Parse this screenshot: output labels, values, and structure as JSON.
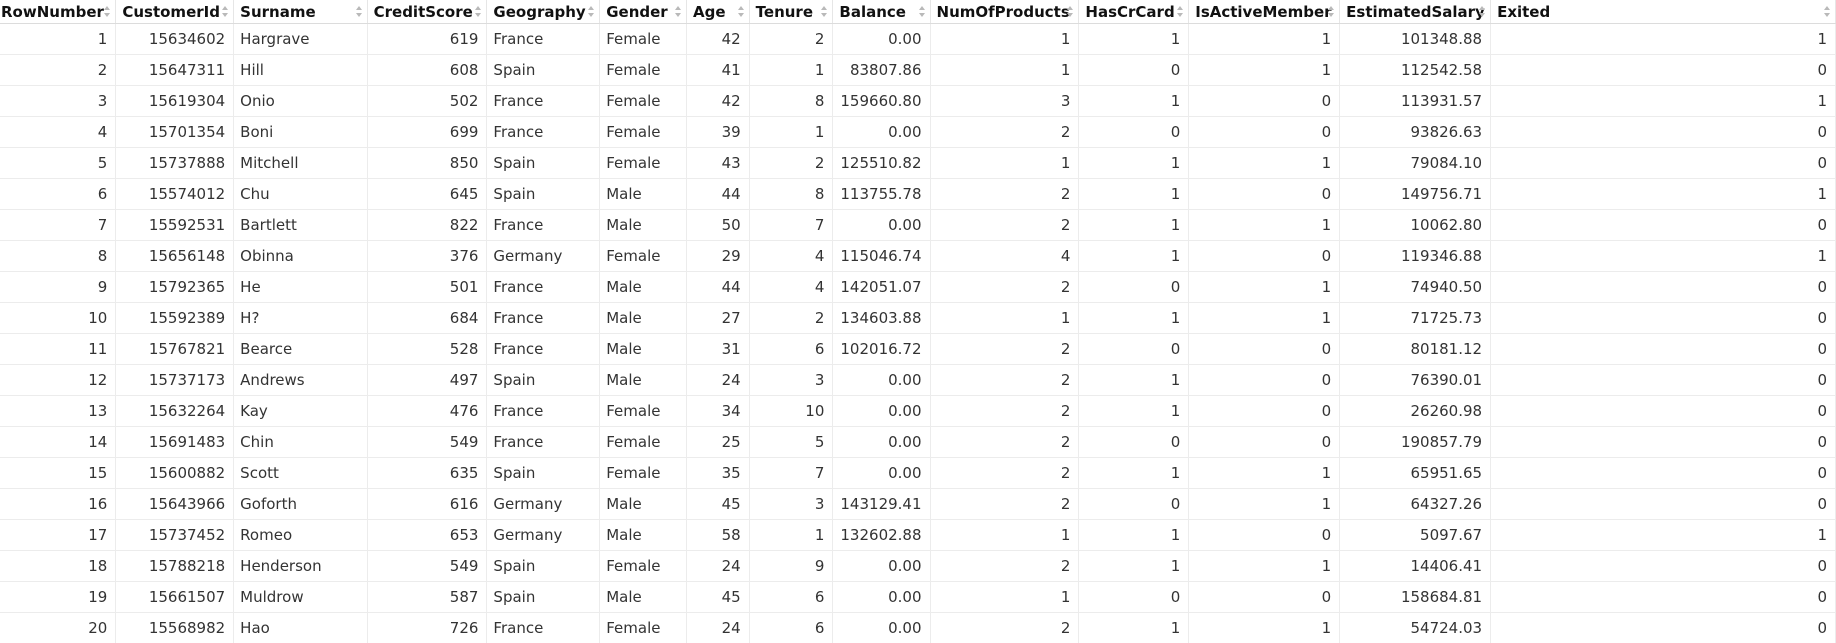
{
  "table": {
    "columns": [
      {
        "key": "RowNumber",
        "label": "RowNumber",
        "align": "num"
      },
      {
        "key": "CustomerId",
        "label": "CustomerId",
        "align": "num"
      },
      {
        "key": "Surname",
        "label": "Surname",
        "align": "txt"
      },
      {
        "key": "CreditScore",
        "label": "CreditScore",
        "align": "num"
      },
      {
        "key": "Geography",
        "label": "Geography",
        "align": "txt"
      },
      {
        "key": "Gender",
        "label": "Gender",
        "align": "txt"
      },
      {
        "key": "Age",
        "label": "Age",
        "align": "num"
      },
      {
        "key": "Tenure",
        "label": "Tenure",
        "align": "num"
      },
      {
        "key": "Balance",
        "label": "Balance",
        "align": "num"
      },
      {
        "key": "NumOfProducts",
        "label": "NumOfProducts",
        "align": "num"
      },
      {
        "key": "HasCrCard",
        "label": "HasCrCard",
        "align": "num"
      },
      {
        "key": "IsActiveMember",
        "label": "IsActiveMember",
        "align": "num"
      },
      {
        "key": "EstimatedSalary",
        "label": "EstimatedSalary",
        "align": "num"
      },
      {
        "key": "Exited",
        "label": "Exited",
        "align": "num"
      }
    ],
    "rows": [
      [
        "1",
        "15634602",
        "Hargrave",
        "619",
        "France",
        "Female",
        "42",
        "2",
        "0.00",
        "1",
        "1",
        "1",
        "101348.88",
        "1"
      ],
      [
        "2",
        "15647311",
        "Hill",
        "608",
        "Spain",
        "Female",
        "41",
        "1",
        "83807.86",
        "1",
        "0",
        "1",
        "112542.58",
        "0"
      ],
      [
        "3",
        "15619304",
        "Onio",
        "502",
        "France",
        "Female",
        "42",
        "8",
        "159660.80",
        "3",
        "1",
        "0",
        "113931.57",
        "1"
      ],
      [
        "4",
        "15701354",
        "Boni",
        "699",
        "France",
        "Female",
        "39",
        "1",
        "0.00",
        "2",
        "0",
        "0",
        "93826.63",
        "0"
      ],
      [
        "5",
        "15737888",
        "Mitchell",
        "850",
        "Spain",
        "Female",
        "43",
        "2",
        "125510.82",
        "1",
        "1",
        "1",
        "79084.10",
        "0"
      ],
      [
        "6",
        "15574012",
        "Chu",
        "645",
        "Spain",
        "Male",
        "44",
        "8",
        "113755.78",
        "2",
        "1",
        "0",
        "149756.71",
        "1"
      ],
      [
        "7",
        "15592531",
        "Bartlett",
        "822",
        "France",
        "Male",
        "50",
        "7",
        "0.00",
        "2",
        "1",
        "1",
        "10062.80",
        "0"
      ],
      [
        "8",
        "15656148",
        "Obinna",
        "376",
        "Germany",
        "Female",
        "29",
        "4",
        "115046.74",
        "4",
        "1",
        "0",
        "119346.88",
        "1"
      ],
      [
        "9",
        "15792365",
        "He",
        "501",
        "France",
        "Male",
        "44",
        "4",
        "142051.07",
        "2",
        "0",
        "1",
        "74940.50",
        "0"
      ],
      [
        "10",
        "15592389",
        "H?",
        "684",
        "France",
        "Male",
        "27",
        "2",
        "134603.88",
        "1",
        "1",
        "1",
        "71725.73",
        "0"
      ],
      [
        "11",
        "15767821",
        "Bearce",
        "528",
        "France",
        "Male",
        "31",
        "6",
        "102016.72",
        "2",
        "0",
        "0",
        "80181.12",
        "0"
      ],
      [
        "12",
        "15737173",
        "Andrews",
        "497",
        "Spain",
        "Male",
        "24",
        "3",
        "0.00",
        "2",
        "1",
        "0",
        "76390.01",
        "0"
      ],
      [
        "13",
        "15632264",
        "Kay",
        "476",
        "France",
        "Female",
        "34",
        "10",
        "0.00",
        "2",
        "1",
        "0",
        "26260.98",
        "0"
      ],
      [
        "14",
        "15691483",
        "Chin",
        "549",
        "France",
        "Female",
        "25",
        "5",
        "0.00",
        "2",
        "0",
        "0",
        "190857.79",
        "0"
      ],
      [
        "15",
        "15600882",
        "Scott",
        "635",
        "Spain",
        "Female",
        "35",
        "7",
        "0.00",
        "2",
        "1",
        "1",
        "65951.65",
        "0"
      ],
      [
        "16",
        "15643966",
        "Goforth",
        "616",
        "Germany",
        "Male",
        "45",
        "3",
        "143129.41",
        "2",
        "0",
        "1",
        "64327.26",
        "0"
      ],
      [
        "17",
        "15737452",
        "Romeo",
        "653",
        "Germany",
        "Male",
        "58",
        "1",
        "132602.88",
        "1",
        "1",
        "0",
        "5097.67",
        "1"
      ],
      [
        "18",
        "15788218",
        "Henderson",
        "549",
        "Spain",
        "Female",
        "24",
        "9",
        "0.00",
        "2",
        "1",
        "1",
        "14406.41",
        "0"
      ],
      [
        "19",
        "15661507",
        "Muldrow",
        "587",
        "Spain",
        "Male",
        "45",
        "6",
        "0.00",
        "1",
        "0",
        "0",
        "158684.81",
        "0"
      ],
      [
        "20",
        "15568982",
        "Hao",
        "726",
        "France",
        "Female",
        "24",
        "6",
        "0.00",
        "2",
        "1",
        "1",
        "54724.03",
        "0"
      ]
    ]
  },
  "icons": {
    "sort": "sort-arrows-icon",
    "sort_color": "#b9b9b9"
  }
}
